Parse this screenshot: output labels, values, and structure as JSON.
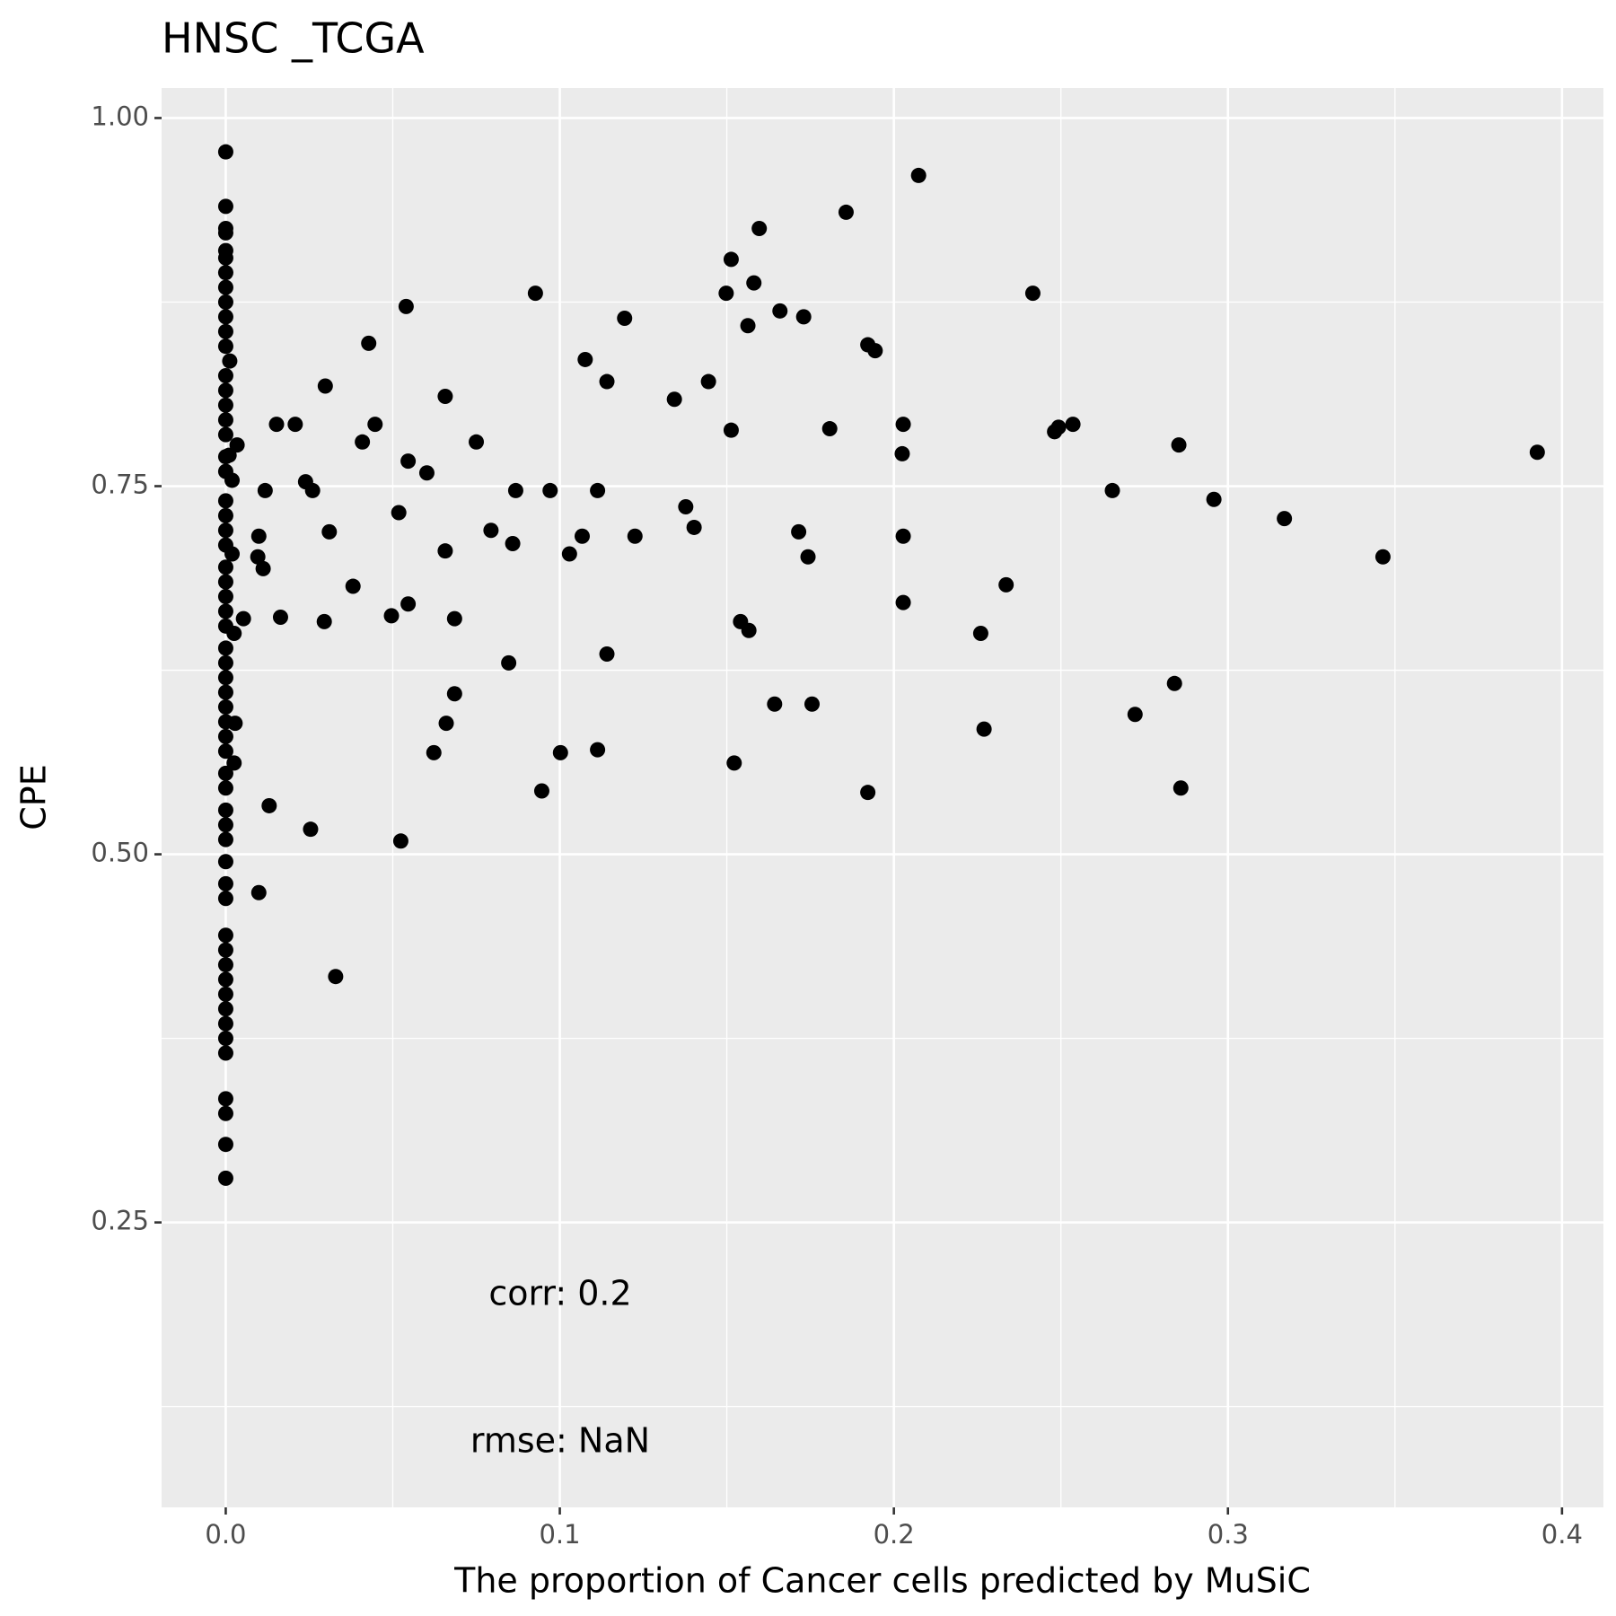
{
  "chart_data": {
    "type": "scatter",
    "title": "HNSC _TCGA",
    "x_label": "The proportion of Cancer cells predicted by MuSiC",
    "y_label": "CPE",
    "annotations": [
      "corr: 0.2",
      "rmse: NaN"
    ],
    "color": "#000000",
    "grid": true,
    "xlim": [
      -0.0192,
      0.4124
    ],
    "ylim": [
      0.0565,
      1.0204
    ],
    "xticks": [
      {
        "value": 0,
        "label": "0.0"
      },
      0.1,
      0.2,
      0.3,
      0.4
    ],
    "yticks": [
      {
        "value": 0.25,
        "label": "0.25"
      },
      {
        "value": 0.5,
        "label": "0.50"
      },
      {
        "value": 0.75,
        "label": "0.75"
      },
      {
        "value": 1,
        "label": "1.00"
      }
    ],
    "x_minor_ticks": [
      0.05,
      0.15,
      0.25,
      0.35
    ],
    "y_minor_ticks": [
      0.125,
      0.375,
      0.625,
      0.875
    ],
    "x": [
      0.2074,
      0,
      0,
      0,
      0,
      0.1597,
      0.1857,
      0.1513,
      0.1498,
      0.1581,
      0.0927,
      0.2416,
      0.054,
      0.1659,
      0.173,
      0.1194,
      0.1563,
      0.0428,
      0.1922,
      0.1944,
      0.1076,
      0.1141,
      0.1445,
      0.0298,
      0.0657,
      0.1343,
      0.0152,
      0.0208,
      0.0447,
      0.2028,
      0.2536,
      0.2493,
      0.2481,
      0.1513,
      0.1808,
      0.0409,
      0.075,
      0.0034,
      0.2853,
      0.2025,
      0.3926,
      0.0546,
      0.0602,
      0.0239,
      0.026,
      0.0118,
      0.0868,
      0.0971,
      0.1113,
      0.2654,
      0.0019,
      0.2958,
      0.1377,
      0.0518,
      0.3169,
      0.1402,
      0.0794,
      0.031,
      0.1715,
      0.1067,
      0.1225,
      0.2028,
      0.0099,
      0.0859,
      0.0657,
      0.1029,
      0.3464,
      0.1743,
      0.0096,
      0.0112,
      0.0381,
      0.2336,
      0.2028,
      0.0546,
      0.0053,
      0.0164,
      0.0295,
      0.0496,
      0.0685,
      0.1541,
      0.1566,
      0.226,
      0.0025,
      0.1141,
      0.0847,
      0.284,
      0.0685,
      0.1643,
      0.1755,
      0.2722,
      0.0028,
      0.066,
      0.227,
      0.0623,
      0.1002,
      0.1113,
      0.0025,
      0.1522,
      0.0946,
      0.1922,
      0.2859,
      0.013,
      0.0254,
      0.0524,
      0.0099,
      0.0329,
      0.0012,
      0.001,
      0.0019,
      0,
      0,
      0,
      0,
      0,
      0,
      0,
      0,
      0,
      0,
      0,
      0,
      0,
      0,
      0,
      0,
      0,
      0,
      0,
      0,
      0,
      0,
      0,
      0,
      0,
      0,
      0,
      0,
      0,
      0,
      0,
      0,
      0,
      0,
      0,
      0,
      0,
      0,
      0,
      0,
      0,
      0,
      0,
      0,
      0,
      0,
      0,
      0,
      0,
      0,
      0,
      0,
      0
    ],
    "values": [
      0.961,
      0.977,
      0.94,
      0.925,
      0.922,
      0.925,
      0.936,
      0.904,
      0.881,
      0.888,
      0.881,
      0.881,
      0.872,
      0.869,
      0.865,
      0.864,
      0.859,
      0.847,
      0.846,
      0.842,
      0.836,
      0.821,
      0.821,
      0.818,
      0.811,
      0.809,
      0.792,
      0.792,
      0.792,
      0.792,
      0.792,
      0.79,
      0.787,
      0.788,
      0.789,
      0.78,
      0.78,
      0.778,
      0.778,
      0.772,
      0.773,
      0.767,
      0.759,
      0.753,
      0.747,
      0.747,
      0.747,
      0.747,
      0.747,
      0.747,
      0.754,
      0.741,
      0.736,
      0.732,
      0.728,
      0.722,
      0.72,
      0.719,
      0.719,
      0.716,
      0.716,
      0.716,
      0.716,
      0.711,
      0.706,
      0.704,
      0.702,
      0.702,
      0.702,
      0.694,
      0.682,
      0.683,
      0.671,
      0.67,
      0.66,
      0.661,
      0.658,
      0.662,
      0.66,
      0.658,
      0.652,
      0.65,
      0.65,
      0.636,
      0.63,
      0.616,
      0.609,
      0.602,
      0.602,
      0.595,
      0.589,
      0.589,
      0.585,
      0.569,
      0.569,
      0.571,
      0.562,
      0.562,
      0.543,
      0.542,
      0.545,
      0.533,
      0.517,
      0.509,
      0.474,
      0.417,
      0.835,
      0.771,
      0.704,
      0.28,
      0.303,
      0.324,
      0.334,
      0.365,
      0.375,
      0.385,
      0.395,
      0.405,
      0.415,
      0.425,
      0.435,
      0.445,
      0.47,
      0.48,
      0.495,
      0.51,
      0.52,
      0.53,
      0.545,
      0.555,
      0.57,
      0.58,
      0.59,
      0.6,
      0.61,
      0.62,
      0.63,
      0.64,
      0.655,
      0.665,
      0.675,
      0.685,
      0.695,
      0.71,
      0.72,
      0.73,
      0.74,
      0.76,
      0.77,
      0.785,
      0.795,
      0.805,
      0.815,
      0.825,
      0.845,
      0.855,
      0.865,
      0.875,
      0.885,
      0.895,
      0.905,
      0.91
    ]
  }
}
